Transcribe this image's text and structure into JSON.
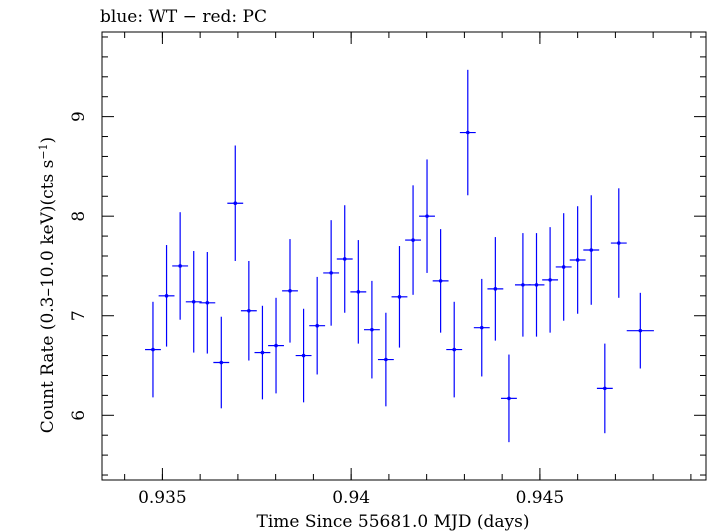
{
  "header": {
    "title": "blue: WT − red: PC"
  },
  "chart_data": {
    "type": "scatter",
    "title": "blue: WT − red: PC",
    "xlabel": "Time Since 55681.0 MJD (days)",
    "ylabel_main": "Count Rate (0.3–10.0 keV)(cts s",
    "ylabel_sup": "−1",
    "ylabel_end": ")",
    "xlim": [
      0.9334,
      0.9494
    ],
    "ylim": [
      5.35,
      9.85
    ],
    "x_ticks": [
      0.935,
      0.94,
      0.945
    ],
    "x_tick_labels": [
      "0.935",
      "0.94",
      "0.945"
    ],
    "y_ticks": [
      6,
      7,
      8,
      9
    ],
    "y_tick_labels": [
      "6",
      "7",
      "8",
      "9"
    ],
    "grid": false,
    "series": [
      {
        "color": "#0000ff",
        "points": [
          {
            "x": 0.93475,
            "xerr": 0.00021,
            "y": 6.66,
            "yerr": 0.48
          },
          {
            "x": 0.93511,
            "xerr": 0.00021,
            "y": 7.2,
            "yerr": 0.51
          },
          {
            "x": 0.93547,
            "xerr": 0.00021,
            "y": 7.5,
            "yerr": 0.54
          },
          {
            "x": 0.93583,
            "xerr": 0.00021,
            "y": 7.14,
            "yerr": 0.51
          },
          {
            "x": 0.93619,
            "xerr": 0.00021,
            "y": 7.13,
            "yerr": 0.51
          },
          {
            "x": 0.93656,
            "xerr": 0.00021,
            "y": 6.53,
            "yerr": 0.46
          },
          {
            "x": 0.93693,
            "xerr": 0.00021,
            "y": 8.13,
            "yerr": 0.58
          },
          {
            "x": 0.93729,
            "xerr": 0.00021,
            "y": 7.05,
            "yerr": 0.5
          },
          {
            "x": 0.93765,
            "xerr": 0.00021,
            "y": 6.63,
            "yerr": 0.47
          },
          {
            "x": 0.93801,
            "xerr": 0.00021,
            "y": 6.7,
            "yerr": 0.48
          },
          {
            "x": 0.93838,
            "xerr": 0.00021,
            "y": 7.25,
            "yerr": 0.52
          },
          {
            "x": 0.93874,
            "xerr": 0.00021,
            "y": 6.6,
            "yerr": 0.47
          },
          {
            "x": 0.9391,
            "xerr": 0.00021,
            "y": 6.9,
            "yerr": 0.49
          },
          {
            "x": 0.93947,
            "xerr": 0.00021,
            "y": 7.43,
            "yerr": 0.53
          },
          {
            "x": 0.93983,
            "xerr": 0.00021,
            "y": 7.57,
            "yerr": 0.54
          },
          {
            "x": 0.94019,
            "xerr": 0.00021,
            "y": 7.24,
            "yerr": 0.52
          },
          {
            "x": 0.94055,
            "xerr": 0.00021,
            "y": 6.86,
            "yerr": 0.49
          },
          {
            "x": 0.94092,
            "xerr": 0.00021,
            "y": 6.56,
            "yerr": 0.47
          },
          {
            "x": 0.94128,
            "xerr": 0.00021,
            "y": 7.19,
            "yerr": 0.51
          },
          {
            "x": 0.94164,
            "xerr": 0.00021,
            "y": 7.76,
            "yerr": 0.55
          },
          {
            "x": 0.94201,
            "xerr": 0.00021,
            "y": 8.0,
            "yerr": 0.57
          },
          {
            "x": 0.94237,
            "xerr": 0.00021,
            "y": 7.35,
            "yerr": 0.52
          },
          {
            "x": 0.94273,
            "xerr": 0.00021,
            "y": 6.66,
            "yerr": 0.48
          },
          {
            "x": 0.94309,
            "xerr": 0.00021,
            "y": 8.84,
            "yerr": 0.63
          },
          {
            "x": 0.94346,
            "xerr": 0.00021,
            "y": 6.88,
            "yerr": 0.49
          },
          {
            "x": 0.94382,
            "xerr": 0.00021,
            "y": 7.27,
            "yerr": 0.52
          },
          {
            "x": 0.94418,
            "xerr": 0.00021,
            "y": 6.17,
            "yerr": 0.44
          },
          {
            "x": 0.94455,
            "xerr": 0.00021,
            "y": 7.31,
            "yerr": 0.52
          },
          {
            "x": 0.94491,
            "xerr": 0.00021,
            "y": 7.31,
            "yerr": 0.52
          },
          {
            "x": 0.94527,
            "xerr": 0.00021,
            "y": 7.36,
            "yerr": 0.53
          },
          {
            "x": 0.94563,
            "xerr": 0.00021,
            "y": 7.49,
            "yerr": 0.54
          },
          {
            "x": 0.946,
            "xerr": 0.00021,
            "y": 7.56,
            "yerr": 0.54
          },
          {
            "x": 0.94636,
            "xerr": 0.00021,
            "y": 7.66,
            "yerr": 0.55
          },
          {
            "x": 0.94672,
            "xerr": 0.00021,
            "y": 6.27,
            "yerr": 0.45
          },
          {
            "x": 0.94709,
            "xerr": 0.00021,
            "y": 7.73,
            "yerr": 0.55
          },
          {
            "x": 0.94766,
            "xerr": 0.00036,
            "y": 6.85,
            "yerr": 0.38
          }
        ]
      }
    ]
  }
}
